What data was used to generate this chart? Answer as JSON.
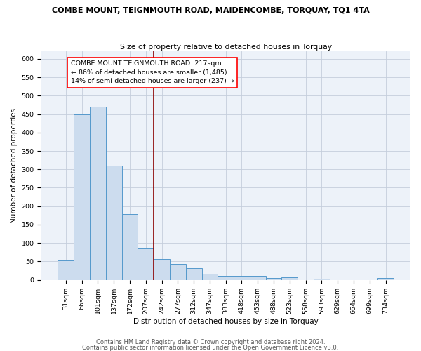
{
  "title1": "COMBE MOUNT, TEIGNMOUTH ROAD, MAIDENCOMBE, TORQUAY, TQ1 4TA",
  "title2": "Size of property relative to detached houses in Torquay",
  "xlabel": "Distribution of detached houses by size in Torquay",
  "ylabel": "Number of detached properties",
  "categories": [
    "31sqm",
    "66sqm",
    "101sqm",
    "137sqm",
    "172sqm",
    "207sqm",
    "242sqm",
    "277sqm",
    "312sqm",
    "347sqm",
    "383sqm",
    "418sqm",
    "453sqm",
    "488sqm",
    "523sqm",
    "558sqm",
    "593sqm",
    "629sqm",
    "664sqm",
    "699sqm",
    "734sqm"
  ],
  "values": [
    53,
    450,
    470,
    310,
    178,
    88,
    57,
    43,
    32,
    17,
    10,
    10,
    10,
    6,
    8,
    0,
    4,
    0,
    0,
    0,
    5
  ],
  "bar_color": "#ccdcee",
  "bar_edge_color": "#5599cc",
  "red_line_x": 5.5,
  "annotation_line1": "COMBE MOUNT TEIGNMOUTH ROAD: 217sqm",
  "annotation_line2": "← 86% of detached houses are smaller (1,485)",
  "annotation_line3": "14% of semi-detached houses are larger (237) →",
  "footer1": "Contains HM Land Registry data © Crown copyright and database right 2024.",
  "footer2": "Contains public sector information licensed under the Open Government Licence v3.0.",
  "ylim": [
    0,
    620
  ],
  "yticks": [
    0,
    50,
    100,
    150,
    200,
    250,
    300,
    350,
    400,
    450,
    500,
    550,
    600
  ],
  "bg_color": "#edf2f9",
  "grid_color": "#c5cedc",
  "title_fontsize": 8.0,
  "subtitle_fontsize": 7.8,
  "axis_label_fontsize": 7.5,
  "tick_fontsize": 6.8,
  "annotation_fontsize": 6.8,
  "footer_fontsize": 6.0
}
